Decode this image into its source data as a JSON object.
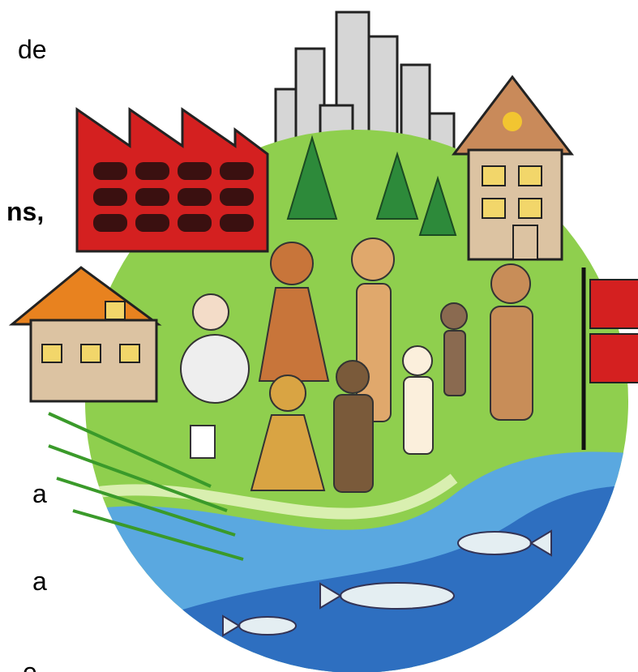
{
  "fragments": [
    "de",
    "ns,",
    "a",
    "a",
    "e"
  ]
}
